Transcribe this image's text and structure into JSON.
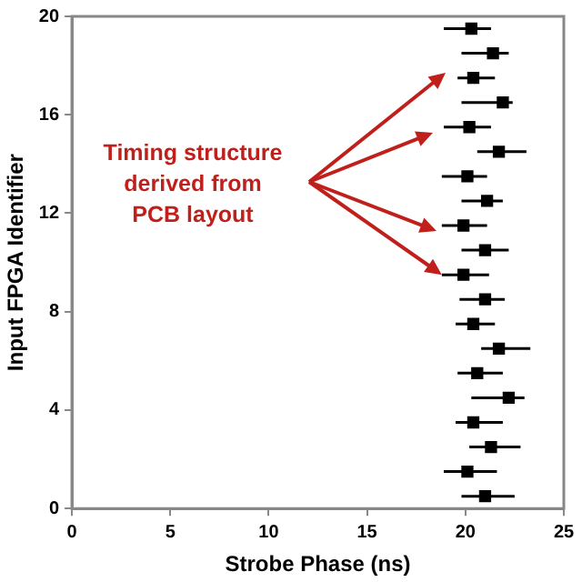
{
  "chart_data": {
    "type": "scatter",
    "xlabel": "Strobe Phase (ns)",
    "ylabel": "Input FPGA Identifier",
    "annotations": [
      {
        "text": "Timing structure derived from PCB layout",
        "x": 18.8,
        "y": 9.5
      }
    ],
    "x": [
      21.0,
      20.1,
      21.3,
      20.4,
      22.2,
      20.6,
      21.7,
      20.4,
      21.0,
      19.9,
      21.0,
      19.9,
      21.1,
      20.1,
      21.7,
      20.2,
      21.9,
      20.4,
      21.4,
      20.3
    ],
    "values": [
      0.5,
      1.5,
      2.5,
      3.5,
      4.5,
      5.5,
      6.5,
      7.5,
      8.5,
      9.5,
      10.5,
      11.5,
      12.5,
      13.5,
      14.5,
      15.5,
      16.5,
      17.5,
      18.5,
      19.5
    ],
    "xerrors": [
      [
        19.8,
        22.5
      ],
      [
        18.9,
        21.6
      ],
      [
        20.2,
        22.8
      ],
      [
        19.5,
        21.9
      ],
      [
        20.3,
        23.0
      ],
      [
        19.6,
        21.9
      ],
      [
        20.8,
        23.3
      ],
      [
        19.5,
        21.5
      ],
      [
        19.7,
        22.0
      ],
      [
        18.8,
        21.2
      ],
      [
        19.8,
        22.2
      ],
      [
        18.8,
        21.1
      ],
      [
        19.8,
        21.9
      ],
      [
        18.8,
        21.1
      ],
      [
        20.6,
        23.1
      ],
      [
        18.9,
        21.3
      ],
      [
        19.8,
        22.4
      ],
      [
        19.6,
        21.5
      ],
      [
        19.8,
        22.2
      ],
      [
        18.9,
        21.3
      ]
    ],
    "color": "#000000",
    "marker": "square",
    "xlim": [
      0,
      25
    ],
    "xticks": [
      0,
      5,
      10,
      15,
      20,
      25
    ],
    "ylim": [
      0,
      20
    ],
    "yticks": [
      0,
      4,
      8,
      12,
      16,
      20
    ],
    "grid": false,
    "legend": false
  }
}
